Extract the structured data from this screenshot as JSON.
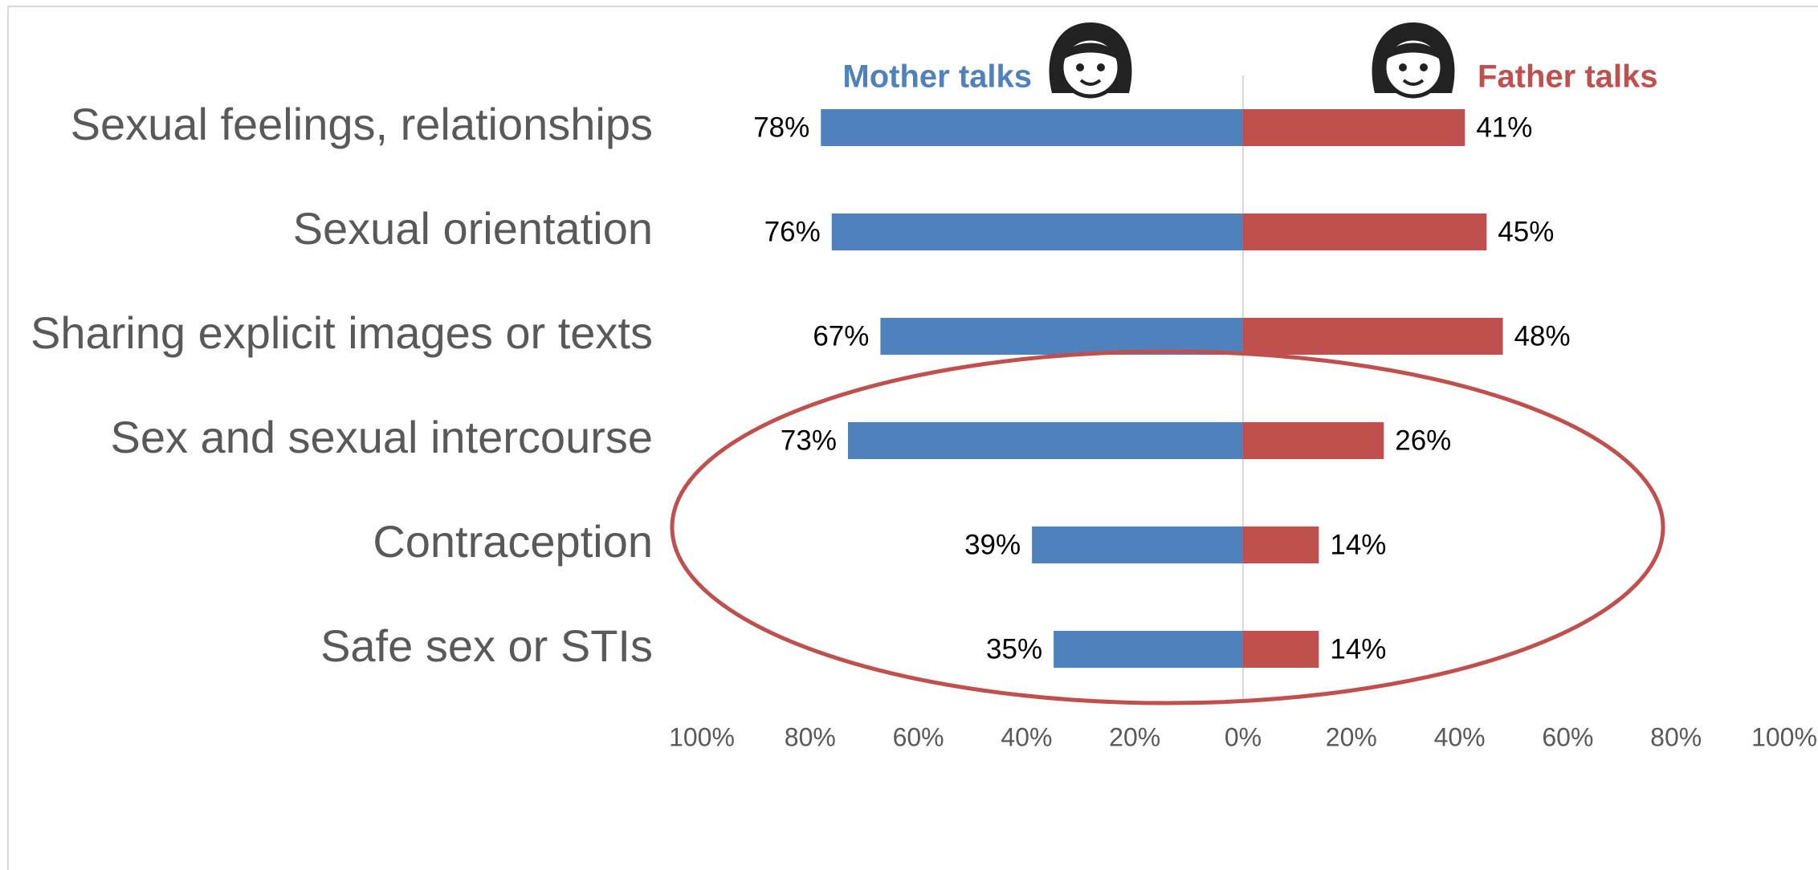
{
  "chart_data": {
    "type": "butterfly",
    "categories": [
      "Sexual feelings, relationships",
      "Sexual orientation",
      "Sharing explicit images or texts",
      "Sex and sexual intercourse",
      "Contraception",
      "Safe sex or STIs"
    ],
    "series": [
      {
        "name": "Mother talks",
        "color": "#4f81bd",
        "values": [
          78,
          76,
          67,
          73,
          39,
          35
        ],
        "value_labels": [
          "78%",
          "76%",
          "67%",
          "73%",
          "39%",
          "35%"
        ]
      },
      {
        "name": "Father talks",
        "color": "#c0504d",
        "values": [
          41,
          45,
          48,
          26,
          14,
          14
        ],
        "value_labels": [
          "41%",
          "45%",
          "48%",
          "26%",
          "14%",
          "14%"
        ]
      }
    ],
    "xlim": [
      0,
      100
    ],
    "xticks_mother": [
      {
        "value": 100,
        "label": "100%"
      },
      {
        "value": 80,
        "label": "80%"
      },
      {
        "value": 60,
        "label": "60%"
      },
      {
        "value": 40,
        "label": "40%"
      },
      {
        "value": 20,
        "label": "20%"
      }
    ],
    "xticks_father": [
      {
        "value": 0,
        "label": "0%"
      },
      {
        "value": 20,
        "label": "20%"
      },
      {
        "value": 40,
        "label": "40%"
      },
      {
        "value": 60,
        "label": "60%"
      },
      {
        "value": 80,
        "label": "80%"
      },
      {
        "value": 100,
        "label": "100%"
      }
    ],
    "highlight_color": "#c0504d"
  }
}
